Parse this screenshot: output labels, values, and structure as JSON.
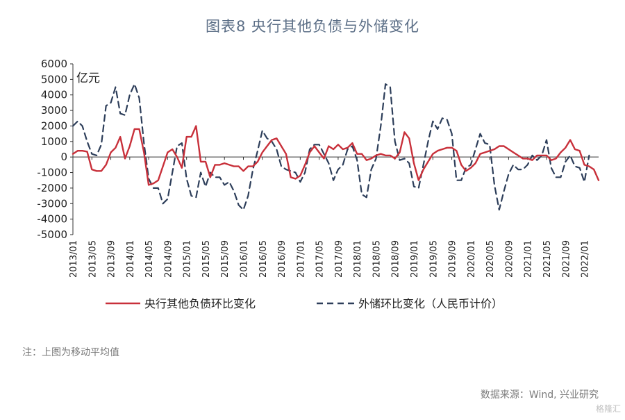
{
  "title": "图表8  央行其他负债与外储变化",
  "note": "注：上图为移动平均值",
  "source": "数据来源：Wind, 兴业研究",
  "watermark": "格隆汇",
  "chart_data": {
    "type": "line",
    "unit_label": "亿元",
    "ylim": [
      -5000,
      6000
    ],
    "yticks": [
      6000,
      5000,
      4000,
      3000,
      2000,
      1000,
      0,
      -1000,
      -2000,
      -3000,
      -4000,
      -5000
    ],
    "x_tick_labels": [
      "2013/01",
      "2013/05",
      "2013/09",
      "2014/01",
      "2014/05",
      "2014/09",
      "2015/01",
      "2015/05",
      "2015/09",
      "2016/01",
      "2016/05",
      "2016/09",
      "2017/01",
      "2017/05",
      "2017/09",
      "2018/01",
      "2018/05",
      "2018/09",
      "2019/01",
      "2019/05",
      "2019/09",
      "2020/01",
      "2020/05",
      "2020/09",
      "2021/01",
      "2021/05",
      "2021/09",
      "2022/01"
    ],
    "x_start": "2013/01",
    "legend_position": "bottom",
    "colors": {
      "series1": "#c8303a",
      "series2": "#2d3e5a",
      "axis": "#333333"
    },
    "series": [
      {
        "name": "央行其他负债环比变化",
        "style": "solid",
        "values": [
          200,
          400,
          400,
          350,
          -800,
          -900,
          -900,
          -500,
          300,
          600,
          1300,
          -100,
          700,
          1800,
          1800,
          300,
          -1800,
          -1700,
          -1500,
          -600,
          300,
          500,
          0,
          -700,
          1300,
          1300,
          2000,
          -300,
          -300,
          -1300,
          -500,
          -500,
          -400,
          -500,
          -600,
          -600,
          -900,
          -600,
          -600,
          -300,
          300,
          700,
          1100,
          1200,
          700,
          200,
          -1300,
          -1400,
          -1200,
          -500,
          300,
          700,
          300,
          -100,
          700,
          500,
          800,
          500,
          600,
          900,
          200,
          200,
          -200,
          -100,
          100,
          200,
          100,
          100,
          -100,
          300,
          1600,
          1200,
          -400,
          -1500,
          -800,
          -300,
          200,
          400,
          500,
          600,
          600,
          400,
          -500,
          -900,
          -700,
          -400,
          200,
          300,
          400,
          500,
          700,
          700,
          500,
          300,
          100,
          -100,
          -100,
          -200,
          100,
          100,
          100,
          -200,
          -100,
          300,
          600,
          1100,
          500,
          400,
          -500,
          -600,
          -800,
          -1500
        ]
      },
      {
        "name": "外储环比变化（人民币计价）",
        "style": "dashed",
        "values": [
          2000,
          2300,
          2000,
          1000,
          200,
          100,
          800,
          3300,
          3500,
          4500,
          2800,
          2700,
          4000,
          4700,
          3800,
          900,
          -1400,
          -2000,
          -2000,
          -3000,
          -2700,
          -1000,
          700,
          900,
          -1400,
          -2500,
          -2600,
          -1000,
          -1900,
          -1000,
          -1300,
          -1300,
          -1800,
          -1600,
          -2200,
          -3100,
          -3400,
          -2500,
          -800,
          400,
          1700,
          1200,
          1000,
          500,
          -600,
          -800,
          -900,
          -1000,
          -1600,
          -1000,
          500,
          800,
          800,
          200,
          -400,
          -1500,
          -800,
          -500,
          500,
          700,
          -200,
          -2400,
          -2600,
          -800,
          -100,
          2000,
          4700,
          4500,
          1000,
          -200,
          -100,
          -400,
          -1900,
          -2000,
          -500,
          1000,
          2300,
          1800,
          2500,
          2400,
          1500,
          -1500,
          -1500,
          -700,
          -500,
          500,
          1500,
          900,
          800,
          -1800,
          -3400,
          -2200,
          -1100,
          -500,
          -800,
          -800,
          -500,
          100,
          -200,
          100,
          1100,
          -700,
          -1300,
          -1300,
          -300,
          100,
          -600,
          -700,
          -1600,
          100
        ]
      }
    ]
  }
}
